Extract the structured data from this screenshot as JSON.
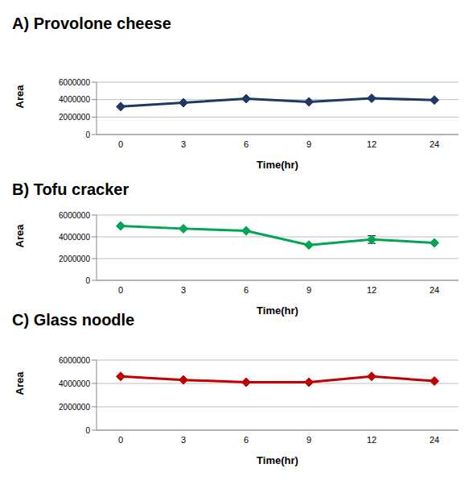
{
  "chart_data": [
    {
      "type": "line",
      "title": "A) Provolone cheese",
      "x_label": "Time(hr)",
      "y_label": "Area",
      "categories": [
        "0",
        "3",
        "6",
        "9",
        "12",
        "24"
      ],
      "values": [
        3200000,
        3650000,
        4100000,
        3750000,
        4150000,
        3950000
      ],
      "color": "#1f3864",
      "marker": "diamond",
      "ylim": [
        0,
        6000000
      ],
      "yticks": [
        0,
        2000000,
        4000000,
        6000000
      ],
      "grid": true
    },
    {
      "type": "line",
      "title": "B) Tofu cracker",
      "x_label": "Time(hr)",
      "y_label": "Area",
      "categories": [
        "0",
        "3",
        "6",
        "9",
        "12",
        "24"
      ],
      "values": [
        5000000,
        4750000,
        4550000,
        3250000,
        3750000,
        3450000
      ],
      "error": [
        0,
        0,
        0,
        0,
        350000,
        0
      ],
      "color": "#00a651",
      "marker": "diamond",
      "ylim": [
        0,
        6000000
      ],
      "yticks": [
        0,
        2000000,
        4000000,
        6000000
      ],
      "grid": true
    },
    {
      "type": "line",
      "title": "C) Glass noodle",
      "x_label": "Time(hr)",
      "y_label": "Area",
      "categories": [
        "0",
        "3",
        "6",
        "9",
        "12",
        "24"
      ],
      "values": [
        4600000,
        4300000,
        4100000,
        4100000,
        4600000,
        4200000
      ],
      "color": "#c00000",
      "marker": "diamond",
      "ylim": [
        0,
        6000000
      ],
      "yticks": [
        0,
        2000000,
        4000000,
        6000000
      ],
      "grid": true
    }
  ]
}
